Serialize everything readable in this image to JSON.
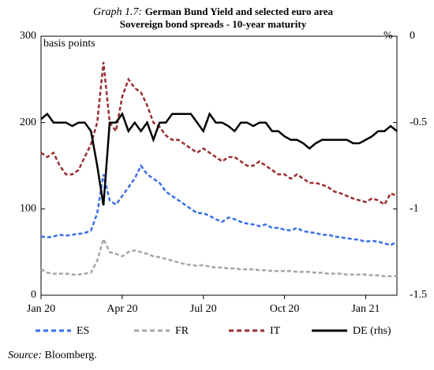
{
  "chart_data": {
    "type": "line",
    "title_label": "Graph 1.7:",
    "title": [
      "German Bund Yield and selected euro area",
      "Sovereign bond spreads - 10-year maturity"
    ],
    "y_label": "basis points",
    "y2_label": "%",
    "source_label": "Source:",
    "source": "Bloomberg.",
    "categories": [
      "Jan 20",
      null,
      null,
      null,
      null,
      null,
      null,
      null,
      null,
      null,
      null,
      null,
      null,
      "Apr 20",
      null,
      null,
      null,
      null,
      null,
      null,
      null,
      null,
      null,
      null,
      null,
      null,
      "Jul 20",
      null,
      null,
      null,
      null,
      null,
      null,
      null,
      null,
      null,
      null,
      null,
      null,
      "Oct 20",
      null,
      null,
      null,
      null,
      null,
      null,
      null,
      null,
      null,
      null,
      null,
      null,
      "Jan 21",
      null,
      null,
      null,
      null,
      null
    ],
    "ylim": [
      0,
      300
    ],
    "yticks": [
      0,
      100,
      200,
      300
    ],
    "y2lim": [
      -1.5,
      0
    ],
    "y2ticks": [
      -1.5,
      -1,
      -0.5,
      0
    ],
    "series": [
      {
        "name": "ES",
        "color": "#3a6ee8",
        "dash": true,
        "values": [
          68,
          67,
          68,
          70,
          69,
          70,
          71,
          72,
          75,
          95,
          140,
          110,
          105,
          115,
          125,
          135,
          150,
          140,
          135,
          130,
          120,
          115,
          110,
          105,
          100,
          95,
          95,
          92,
          88,
          85,
          90,
          88,
          85,
          83,
          82,
          80,
          82,
          78,
          78,
          76,
          75,
          78,
          74,
          73,
          72,
          70,
          70,
          68,
          67,
          66,
          65,
          64,
          62,
          63,
          62,
          60,
          58,
          62
        ]
      },
      {
        "name": "FR",
        "color": "#a6a6a6",
        "dash": true,
        "values": [
          30,
          26,
          25,
          25,
          25,
          24,
          24,
          25,
          26,
          40,
          65,
          50,
          48,
          45,
          50,
          52,
          50,
          48,
          45,
          44,
          42,
          40,
          38,
          36,
          35,
          34,
          35,
          33,
          32,
          32,
          31,
          31,
          30,
          30,
          30,
          29,
          29,
          28,
          28,
          28,
          28,
          27,
          27,
          27,
          26,
          26,
          25,
          25,
          25,
          24,
          24,
          24,
          24,
          23,
          23,
          22,
          22,
          22
        ]
      },
      {
        "name": "IT",
        "color": "#9a2e2e",
        "dash": true,
        "values": [
          165,
          160,
          165,
          150,
          140,
          140,
          145,
          160,
          175,
          200,
          270,
          200,
          190,
          230,
          250,
          240,
          235,
          220,
          200,
          195,
          185,
          180,
          180,
          175,
          170,
          165,
          170,
          165,
          160,
          155,
          160,
          160,
          155,
          150,
          150,
          155,
          150,
          145,
          140,
          140,
          135,
          140,
          135,
          130,
          130,
          128,
          125,
          120,
          118,
          115,
          112,
          110,
          108,
          112,
          110,
          105,
          118,
          115
        ]
      },
      {
        "name": "DE (rhs)",
        "color": "#000000",
        "dash": false,
        "axis": "y2",
        "values": [
          -0.48,
          -0.45,
          -0.5,
          -0.5,
          -0.5,
          -0.52,
          -0.5,
          -0.5,
          -0.55,
          -0.75,
          -0.98,
          -0.5,
          -0.5,
          -0.45,
          -0.55,
          -0.5,
          -0.55,
          -0.5,
          -0.6,
          -0.5,
          -0.5,
          -0.45,
          -0.45,
          -0.45,
          -0.45,
          -0.5,
          -0.55,
          -0.45,
          -0.5,
          -0.5,
          -0.52,
          -0.55,
          -0.5,
          -0.5,
          -0.52,
          -0.5,
          -0.5,
          -0.55,
          -0.55,
          -0.58,
          -0.6,
          -0.6,
          -0.62,
          -0.65,
          -0.62,
          -0.6,
          -0.6,
          -0.6,
          -0.6,
          -0.6,
          -0.62,
          -0.62,
          -0.6,
          -0.58,
          -0.55,
          -0.55,
          -0.52,
          -0.55
        ]
      }
    ]
  }
}
